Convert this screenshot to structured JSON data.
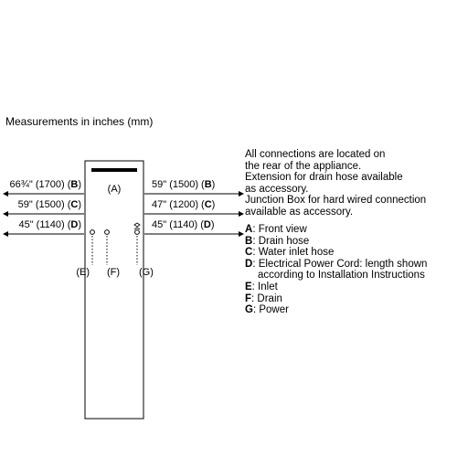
{
  "heading": "Measurements in inches (mm)",
  "labels": {
    "A": "(A)",
    "E": "(E)",
    "F": "(F)",
    "G": "(G)"
  },
  "dimensions": {
    "left_row1": "66¾\" (1700) (",
    "left_row1_letter": "B",
    "left_row2": "59\" (1500) (",
    "left_row2_letter": "C",
    "left_row3": "45\" (1140) (",
    "left_row3_letter": "D",
    "right_row1": "59\" (1500) (",
    "right_row1_letter": "B",
    "right_row2": "47\" (1200) (",
    "right_row2_letter": "C",
    "right_row3": "45\" (1140) (",
    "right_row3_letter": "D",
    "close": ")"
  },
  "notes": [
    "All connections are located on",
    "the rear of the appliance.",
    "Extension for drain hose available",
    "as accessory.",
    "Junction Box for hard wired connection",
    "available as accessory."
  ],
  "legend": [
    {
      "key": "A",
      "text": ": Front view"
    },
    {
      "key": "B",
      "text": ": Drain hose"
    },
    {
      "key": "C",
      "text": ": Water inlet hose"
    },
    {
      "key": "D",
      "text": ": Electrical Power Cord: length shown",
      "cont": "according to Installation Instructions"
    },
    {
      "key": "E",
      "text": ": Inlet"
    },
    {
      "key": "F",
      "text": ": Drain"
    },
    {
      "key": "G",
      "text": ": Power"
    }
  ]
}
